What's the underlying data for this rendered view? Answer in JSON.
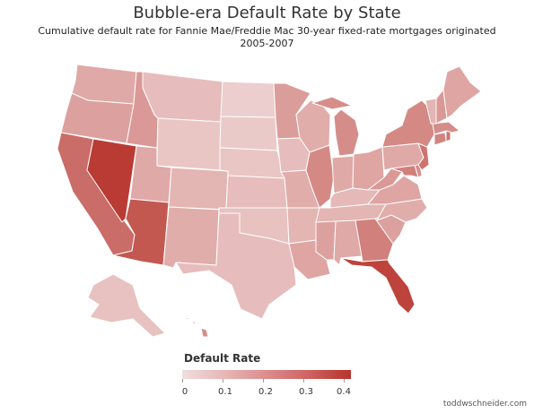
{
  "title": "Bubble-era Default Rate by State",
  "subtitle": "Cumulative default rate for Fannie Mae/Freddie Mac 30-year fixed-rate mortgages originated 2005-2007",
  "legend": {
    "title": "Default Rate",
    "ticks": [
      "0",
      "0.1",
      "0.2",
      "0.3",
      "0.4"
    ],
    "range": [
      0,
      0.42
    ],
    "color_low": "#f1dede",
    "color_high": "#b7332b"
  },
  "credit": "toddwschneider.com",
  "states": [
    {
      "name": "Washington",
      "rate": 0.13
    },
    {
      "name": "Oregon",
      "rate": 0.15
    },
    {
      "name": "California",
      "rate": 0.28
    },
    {
      "name": "Nevada",
      "rate": 0.4
    },
    {
      "name": "Idaho",
      "rate": 0.17
    },
    {
      "name": "Montana",
      "rate": 0.08
    },
    {
      "name": "Wyoming",
      "rate": 0.06
    },
    {
      "name": "Utah",
      "rate": 0.13
    },
    {
      "name": "Arizona",
      "rate": 0.33
    },
    {
      "name": "Colorado",
      "rate": 0.1
    },
    {
      "name": "New Mexico",
      "rate": 0.12
    },
    {
      "name": "North Dakota",
      "rate": 0.04
    },
    {
      "name": "South Dakota",
      "rate": 0.05
    },
    {
      "name": "Nebraska",
      "rate": 0.06
    },
    {
      "name": "Kansas",
      "rate": 0.08
    },
    {
      "name": "Oklahoma",
      "rate": 0.07
    },
    {
      "name": "Texas",
      "rate": 0.08
    },
    {
      "name": "Minnesota",
      "rate": 0.16
    },
    {
      "name": "Iowa",
      "rate": 0.08
    },
    {
      "name": "Missouri",
      "rate": 0.12
    },
    {
      "name": "Arkansas",
      "rate": 0.1
    },
    {
      "name": "Louisiana",
      "rate": 0.14
    },
    {
      "name": "Wisconsin",
      "rate": 0.12
    },
    {
      "name": "Illinois",
      "rate": 0.21
    },
    {
      "name": "Michigan",
      "rate": 0.2
    },
    {
      "name": "Indiana",
      "rate": 0.13
    },
    {
      "name": "Ohio",
      "rate": 0.14
    },
    {
      "name": "Kentucky",
      "rate": 0.09
    },
    {
      "name": "Tennessee",
      "rate": 0.1
    },
    {
      "name": "Mississippi",
      "rate": 0.15
    },
    {
      "name": "Alabama",
      "rate": 0.13
    },
    {
      "name": "Georgia",
      "rate": 0.23
    },
    {
      "name": "Florida",
      "rate": 0.38
    },
    {
      "name": "South Carolina",
      "rate": 0.15
    },
    {
      "name": "North Carolina",
      "rate": 0.12
    },
    {
      "name": "Virginia",
      "rate": 0.14
    },
    {
      "name": "West Virginia",
      "rate": 0.17
    },
    {
      "name": "Maryland",
      "rate": 0.23
    },
    {
      "name": "Delaware",
      "rate": 0.2
    },
    {
      "name": "Pennsylvania",
      "rate": 0.13
    },
    {
      "name": "New Jersey",
      "rate": 0.26
    },
    {
      "name": "New York",
      "rate": 0.21
    },
    {
      "name": "Connecticut",
      "rate": 0.22
    },
    {
      "name": "Rhode Island",
      "rate": 0.26
    },
    {
      "name": "Massachusetts",
      "rate": 0.2
    },
    {
      "name": "Vermont",
      "rate": 0.1
    },
    {
      "name": "New Hampshire",
      "rate": 0.17
    },
    {
      "name": "Maine",
      "rate": 0.14
    },
    {
      "name": "Alaska",
      "rate": 0.07
    },
    {
      "name": "Hawaii",
      "rate": 0.2
    }
  ]
}
